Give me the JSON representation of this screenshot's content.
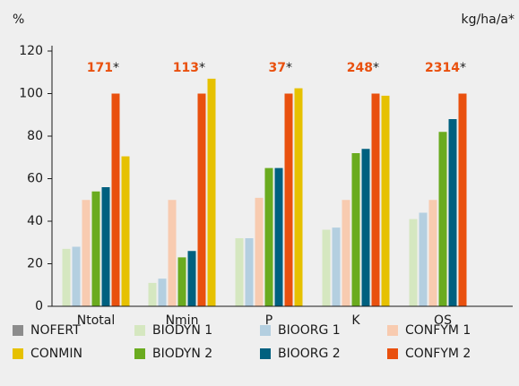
{
  "chart_data": {
    "type": "bar",
    "y_label": "%",
    "y2_label": "kg/ha/a*",
    "categories": [
      "Ntotal",
      "Nmin",
      "P",
      "K",
      "OS"
    ],
    "series": [
      {
        "name": "NOFERT",
        "color": "#8c8c8c",
        "values": [
          null,
          null,
          null,
          null,
          null
        ]
      },
      {
        "name": "BIODYN 1",
        "color": "#d5e7c0",
        "values": [
          27,
          11,
          32,
          36,
          41
        ]
      },
      {
        "name": "BIOORG 1",
        "color": "#b4cfe0",
        "values": [
          28,
          13,
          32,
          37,
          44
        ]
      },
      {
        "name": "CONFYM 1",
        "color": "#f8cbb0",
        "values": [
          50,
          50,
          51,
          50,
          50
        ]
      },
      {
        "name": "CONMIN",
        "color": "#e6c100",
        "values": [
          70.5,
          107,
          102.5,
          99,
          null
        ]
      },
      {
        "name": "BIODYN 2",
        "color": "#6aab1f",
        "values": [
          54,
          23,
          65,
          72,
          82
        ]
      },
      {
        "name": "BIOORG 2",
        "color": "#00607f",
        "values": [
          56,
          26,
          65,
          74,
          88
        ]
      },
      {
        "name": "CONFYM 2",
        "color": "#e9500e",
        "values": [
          100,
          100,
          100,
          100,
          100
        ]
      }
    ],
    "annotations": [
      "171",
      "113",
      "37",
      "248",
      "2314"
    ],
    "annotation_marker": "*",
    "annotation_color": "#e9500e",
    "ylim": [
      0,
      120
    ],
    "yticks": [
      0,
      20,
      40,
      60,
      80,
      100,
      120
    ],
    "grid": false
  }
}
